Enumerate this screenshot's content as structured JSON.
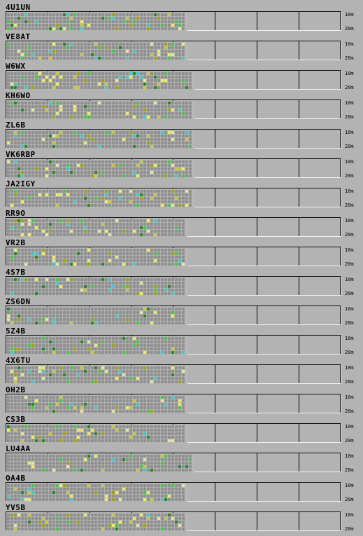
{
  "stations": [
    {
      "call": "4U1UN",
      "fill": 0.54
    },
    {
      "call": "VE8AT",
      "fill": 0.54
    },
    {
      "call": "W6WX",
      "fill": 0.56
    },
    {
      "call": "KH6WO",
      "fill": 0.56
    },
    {
      "call": "ZL6B",
      "fill": 0.56
    },
    {
      "call": "VK6RBP",
      "fill": 0.56
    },
    {
      "call": "JA2IGY",
      "fill": 0.56
    },
    {
      "call": "RR9O",
      "fill": 0.54
    },
    {
      "call": "VR2B",
      "fill": 0.54
    },
    {
      "call": "4S7B",
      "fill": 0.54
    },
    {
      "call": "ZS6DN",
      "fill": 0.54
    },
    {
      "call": "5Z4B",
      "fill": 0.54
    },
    {
      "call": "4X6TU",
      "fill": 0.54
    },
    {
      "call": "OH2B",
      "fill": 0.54
    },
    {
      "call": "CS3B",
      "fill": 0.54
    },
    {
      "call": "LU4AA",
      "fill": 0.56
    },
    {
      "call": "OA4B",
      "fill": 0.54
    },
    {
      "call": "YV5B",
      "fill": 0.54
    }
  ],
  "band_top_label": "10m",
  "band_bottom_label": "20m",
  "colors": {
    "empty": "#8c8c8c",
    "grid": "#b8b8b8",
    "signal": [
      "#c8c83c",
      "#3cc8c8",
      "#3cc83c",
      "#e8e8a0",
      "#a0a000",
      "#f0f060",
      "#208020"
    ]
  }
}
